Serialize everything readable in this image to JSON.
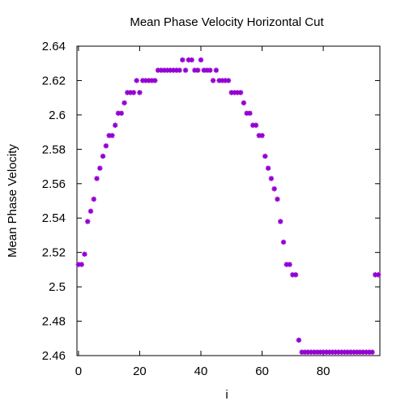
{
  "chart_data": {
    "type": "scatter",
    "title": "Mean Phase Velocity Horizontal Cut",
    "xlabel": "i",
    "ylabel": "Mean Phase Velocity",
    "xlim": [
      -0.5,
      98.5
    ],
    "ylim": [
      2.46,
      2.64
    ],
    "x_ticks": [
      0,
      20,
      40,
      60,
      80
    ],
    "x_tick_labels": [
      "0",
      "20",
      "40",
      "60",
      "80"
    ],
    "y_ticks": [
      2.46,
      2.48,
      2.5,
      2.52,
      2.54,
      2.56,
      2.58,
      2.6,
      2.62,
      2.64
    ],
    "y_tick_labels": [
      "2.46",
      "2.48",
      "2.5",
      "2.52",
      "2.54",
      "2.56",
      "2.58",
      "2.6",
      "2.62",
      "2.64"
    ],
    "grid": false,
    "legend": "none",
    "marker_color": "#9400d3",
    "series": [
      {
        "x": [
          0,
          1,
          2,
          3,
          4,
          5,
          6,
          7,
          8,
          9,
          10,
          11,
          12,
          13,
          14,
          15,
          16,
          17,
          18,
          19,
          20,
          21,
          22,
          23,
          24,
          25,
          26,
          27,
          28,
          29,
          30,
          31,
          32,
          33,
          34,
          35,
          36,
          37,
          38,
          39,
          40,
          41,
          42,
          43,
          44,
          45,
          46,
          47,
          48,
          49,
          50,
          51,
          52,
          53,
          54,
          55,
          56,
          57,
          58,
          59,
          60,
          61,
          62,
          63,
          64,
          65,
          66,
          67,
          68,
          69,
          70,
          71,
          72,
          73,
          74,
          75,
          76,
          77,
          78,
          79,
          80,
          81,
          82,
          83,
          84,
          85,
          86,
          87,
          88,
          89,
          90,
          91,
          92,
          93,
          94,
          95,
          96,
          97,
          98
        ],
        "y": [
          2.513,
          2.513,
          2.519,
          2.538,
          2.544,
          2.551,
          2.563,
          2.569,
          2.576,
          2.582,
          2.588,
          2.588,
          2.594,
          2.601,
          2.601,
          2.607,
          2.613,
          2.613,
          2.613,
          2.62,
          2.613,
          2.62,
          2.62,
          2.62,
          2.62,
          2.62,
          2.626,
          2.626,
          2.626,
          2.626,
          2.626,
          2.626,
          2.626,
          2.626,
          2.632,
          2.626,
          2.632,
          2.632,
          2.626,
          2.626,
          2.632,
          2.626,
          2.626,
          2.626,
          2.62,
          2.626,
          2.62,
          2.62,
          2.62,
          2.62,
          2.613,
          2.613,
          2.613,
          2.613,
          2.607,
          2.601,
          2.601,
          2.594,
          2.594,
          2.588,
          2.588,
          2.576,
          2.569,
          2.563,
          2.557,
          2.551,
          2.538,
          2.526,
          2.513,
          2.513,
          2.507,
          2.507,
          2.469,
          2.462,
          2.462,
          2.462,
          2.462,
          2.462,
          2.462,
          2.462,
          2.462,
          2.462,
          2.462,
          2.462,
          2.462,
          2.462,
          2.462,
          2.462,
          2.462,
          2.462,
          2.462,
          2.462,
          2.462,
          2.462,
          2.462,
          2.462,
          2.462,
          2.507,
          2.507
        ]
      }
    ]
  }
}
